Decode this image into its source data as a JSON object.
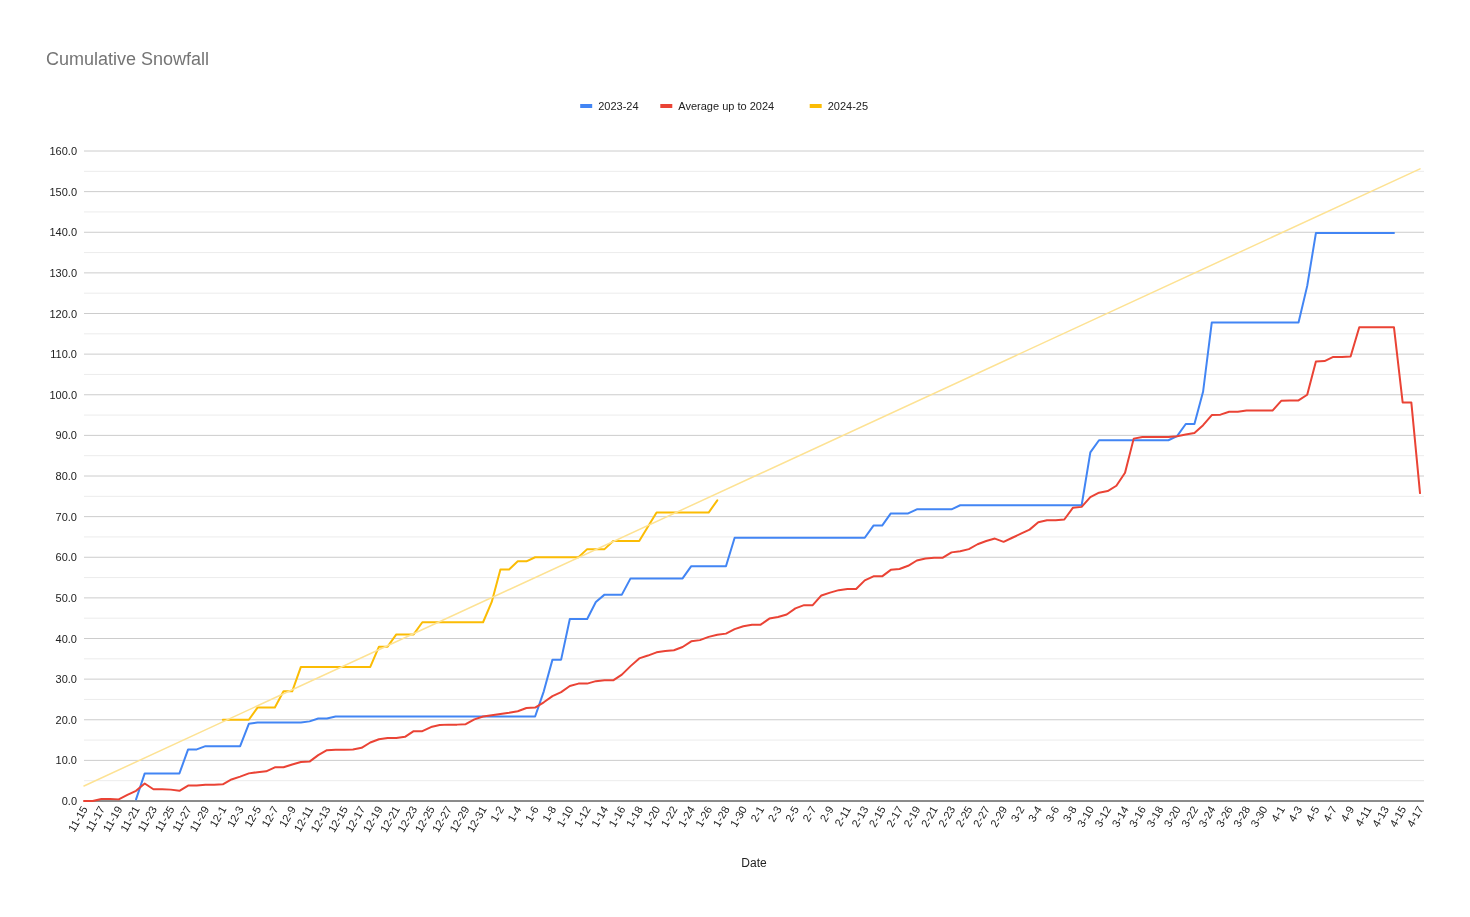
{
  "chart_data": {
    "type": "line",
    "title": "Cumulative Snowfall",
    "xlabel": "Date",
    "categories": [
      "11-15",
      null,
      "11-17",
      null,
      "11-19",
      null,
      "11-21",
      null,
      "11-23",
      null,
      "11-25",
      null,
      "11-27",
      null,
      "11-29",
      null,
      "12-1",
      null,
      "12-3",
      null,
      "12-5",
      null,
      "12-7",
      null,
      "12-9",
      null,
      "12-11",
      null,
      "12-13",
      null,
      "12-15",
      null,
      "12-17",
      null,
      "12-19",
      null,
      "12-21",
      null,
      "12-23",
      null,
      "12-25",
      null,
      "12-27",
      null,
      "12-29",
      null,
      "12-31",
      null,
      "1-2",
      null,
      "1-4",
      null,
      "1-6",
      null,
      "1-8",
      null,
      "1-10",
      null,
      "1-12",
      null,
      "1-14",
      null,
      "1-16",
      null,
      "1-18",
      null,
      "1-20",
      null,
      "1-22",
      null,
      "1-24",
      null,
      "1-26",
      null,
      "1-28",
      null,
      "1-30",
      null,
      "2-1",
      null,
      "2-3",
      null,
      "2-5",
      null,
      "2-7",
      null,
      "2-9",
      null,
      "2-11",
      null,
      "2-13",
      null,
      "2-15",
      null,
      "2-17",
      null,
      "2-19",
      null,
      "2-21",
      null,
      "2-23",
      null,
      "2-25",
      null,
      "2-27",
      null,
      "2-29",
      null,
      "3-2",
      null,
      "3-4",
      null,
      "3-6",
      null,
      "3-8",
      null,
      "3-10",
      null,
      "3-12",
      null,
      "3-14",
      null,
      "3-16",
      null,
      "3-18",
      null,
      "3-20",
      null,
      "3-22",
      null,
      "3-24",
      null,
      "3-26",
      null,
      "3-28",
      null,
      "3-30",
      null,
      "4-1",
      null,
      "4-3",
      null,
      "4-5",
      null,
      "4-7",
      null,
      "4-9",
      null,
      "4-11",
      null,
      "4-13",
      null,
      "4-15",
      null,
      "4-17"
    ],
    "series": [
      {
        "name": "2023-24",
        "color": "#4285f4",
        "values": [
          null,
          null,
          null,
          null,
          null,
          null,
          0.4,
          6.8,
          6.8,
          6.8,
          6.8,
          6.8,
          12.7,
          12.7,
          13.5,
          13.5,
          13.5,
          13.5,
          13.5,
          19.0,
          19.3,
          19.3,
          19.3,
          19.3,
          19.3,
          19.3,
          19.6,
          20.3,
          20.3,
          20.8,
          20.8,
          20.8,
          20.8,
          20.8,
          20.8,
          20.8,
          20.8,
          20.8,
          20.8,
          20.8,
          20.8,
          20.8,
          20.8,
          20.8,
          20.8,
          20.8,
          20.8,
          20.8,
          20.8,
          20.8,
          20.8,
          20.8,
          20.8,
          27.0,
          34.8,
          34.8,
          44.8,
          44.8,
          44.8,
          49.0,
          50.8,
          50.8,
          50.8,
          54.8,
          54.8,
          54.8,
          54.8,
          54.8,
          54.8,
          54.8,
          57.8,
          57.8,
          57.8,
          57.8,
          57.8,
          64.8,
          64.8,
          64.8,
          64.8,
          64.8,
          64.8,
          64.8,
          64.8,
          64.8,
          64.8,
          64.8,
          64.8,
          64.8,
          64.8,
          64.8,
          64.8,
          67.8,
          67.8,
          70.8,
          70.8,
          70.8,
          71.8,
          71.8,
          71.8,
          71.8,
          71.8,
          72.8,
          72.8,
          72.8,
          72.8,
          72.8,
          72.8,
          72.8,
          72.8,
          72.8,
          72.8,
          72.8,
          72.8,
          72.8,
          72.8,
          72.8,
          85.8,
          88.8,
          88.8,
          88.8,
          88.8,
          88.8,
          88.8,
          88.8,
          88.8,
          88.8,
          89.8,
          92.8,
          92.8,
          100.8,
          117.8,
          117.8,
          117.8,
          117.8,
          117.8,
          117.8,
          117.8,
          117.8,
          117.8,
          117.8,
          117.8,
          126.8,
          139.8,
          139.8,
          139.8,
          139.8,
          139.8,
          139.8,
          139.8,
          139.8,
          139.8,
          139.8,
          null,
          null,
          null
        ]
      },
      {
        "name": "Average up to 2024",
        "color": "#ea4335",
        "values": [
          0,
          0,
          0.5,
          0.5,
          0.4,
          1.5,
          2.5,
          4.3,
          2.9,
          2.9,
          2.8,
          2.5,
          3.8,
          3.8,
          4.0,
          4.0,
          4.1,
          5.3,
          6.0,
          6.8,
          7.1,
          7.3,
          8.3,
          8.3,
          9.0,
          9.6,
          9.7,
          11.3,
          12.5,
          12.6,
          12.6,
          12.7,
          13.1,
          14.4,
          15.2,
          15.5,
          15.5,
          15.8,
          17.2,
          17.2,
          18.2,
          18.7,
          18.8,
          18.8,
          18.9,
          20.1,
          20.8,
          21.1,
          21.4,
          21.7,
          22.1,
          22.9,
          23.0,
          24.3,
          25.8,
          26.8,
          28.3,
          28.9,
          28.9,
          29.5,
          29.7,
          29.7,
          31.1,
          33.2,
          35.1,
          35.8,
          36.6,
          36.9,
          37.1,
          37.9,
          39.3,
          39.6,
          40.4,
          40.9,
          41.2,
          42.3,
          43.0,
          43.4,
          43.4,
          44.9,
          45.3,
          45.9,
          47.4,
          48.2,
          48.2,
          50.6,
          51.3,
          51.9,
          52.2,
          52.2,
          54.3,
          55.3,
          55.3,
          56.9,
          57.1,
          57.9,
          59.2,
          59.7,
          59.9,
          59.9,
          61.2,
          61.5,
          62.0,
          63.2,
          64.0,
          64.6,
          63.8,
          64.8,
          65.8,
          66.8,
          68.6,
          69.1,
          69.1,
          69.3,
          72.2,
          72.4,
          74.8,
          75.9,
          76.3,
          77.6,
          80.8,
          89.2,
          89.6,
          89.6,
          89.6,
          89.6,
          89.8,
          90.2,
          90.6,
          92.5,
          95.0,
          95.1,
          95.8,
          95.8,
          96.1,
          96.1,
          96.1,
          96.1,
          98.5,
          98.6,
          98.6,
          100.0,
          108.2,
          108.3,
          109.3,
          109.3,
          109.4,
          116.6,
          116.6,
          116.6,
          116.6,
          116.6,
          98.1,
          98.1,
          75.8
        ]
      },
      {
        "name": "2024-25",
        "color": "#fbbc04",
        "values": [
          null,
          null,
          null,
          null,
          null,
          null,
          null,
          null,
          null,
          null,
          null,
          null,
          null,
          null,
          null,
          null,
          20.0,
          20.0,
          20.0,
          20.0,
          23.0,
          23.0,
          23.0,
          27.0,
          27.0,
          33.0,
          33.0,
          33.0,
          33.0,
          33.0,
          33.0,
          33.0,
          33.0,
          33.0,
          38.0,
          38.0,
          41.0,
          41.0,
          41.0,
          44.0,
          44.0,
          44.0,
          44.0,
          44.0,
          44.0,
          44.0,
          44.0,
          49.0,
          57.0,
          57.0,
          59.0,
          59.0,
          60.0,
          60.0,
          60.0,
          60.0,
          60.0,
          60.0,
          62.0,
          62.0,
          62.0,
          64.0,
          64.0,
          64.0,
          64.0,
          67.5,
          71.0,
          71.0,
          71.0,
          71.0,
          71.0,
          71.0,
          71.0,
          74.0,
          null,
          null,
          null,
          null,
          null,
          null,
          null,
          null,
          null,
          null,
          null,
          null,
          null,
          null,
          null,
          null,
          null,
          null,
          null,
          null,
          null,
          null,
          null,
          null,
          null,
          null,
          null,
          null,
          null,
          null,
          null,
          null,
          null,
          null,
          null,
          null,
          null,
          null,
          null,
          null,
          null,
          null,
          null,
          null,
          null,
          null,
          null,
          null,
          null,
          null,
          null,
          null,
          null,
          null,
          null,
          null,
          null,
          null,
          null,
          null,
          null,
          null,
          null,
          null,
          null,
          null,
          null,
          null,
          null,
          null,
          null,
          null,
          null,
          null,
          null,
          null,
          null,
          null,
          null,
          null,
          null
        ]
      },
      {
        "type": "line",
        "color": "#fde293",
        "x": [
          "11-15",
          "4-17"
        ],
        "values": [
          3.7,
          155.6
        ]
      }
    ],
    "ylim": [
      0,
      160
    ],
    "yticks": [
      {
        "value": 0,
        "label": "0.0"
      },
      {
        "value": 5,
        "label": null
      },
      {
        "value": 10,
        "label": "10.0"
      },
      {
        "value": 15,
        "label": null
      },
      {
        "value": 20,
        "label": "20.0"
      },
      {
        "value": 25,
        "label": null
      },
      {
        "value": 30,
        "label": "30.0"
      },
      {
        "value": 35,
        "label": null
      },
      {
        "value": 40,
        "label": "40.0"
      },
      {
        "value": 45,
        "label": null
      },
      {
        "value": 50,
        "label": "50.0"
      },
      {
        "value": 55,
        "label": null
      },
      {
        "value": 60,
        "label": "60.0"
      },
      {
        "value": 65,
        "label": null
      },
      {
        "value": 70,
        "label": "70.0"
      },
      {
        "value": 75,
        "label": null
      },
      {
        "value": 80,
        "label": "80.0"
      },
      {
        "value": 85,
        "label": null
      },
      {
        "value": 90,
        "label": "90.0"
      },
      {
        "value": 95,
        "label": null
      },
      {
        "value": 100,
        "label": "100.0"
      },
      {
        "value": 105,
        "label": null
      },
      {
        "value": 110,
        "label": "110.0"
      },
      {
        "value": 115,
        "label": null
      },
      {
        "value": 120,
        "label": "120.0"
      },
      {
        "value": 125,
        "label": null
      },
      {
        "value": 130,
        "label": "130.0"
      },
      {
        "value": 135,
        "label": null
      },
      {
        "value": 140,
        "label": "140.0"
      },
      {
        "value": 145,
        "label": null
      },
      {
        "value": 150,
        "label": "150.0"
      },
      {
        "value": 155,
        "label": null
      },
      {
        "value": 160,
        "label": "160.0"
      }
    ],
    "grid": "y",
    "legend": "top",
    "marker": "none",
    "line_style": "solid"
  }
}
